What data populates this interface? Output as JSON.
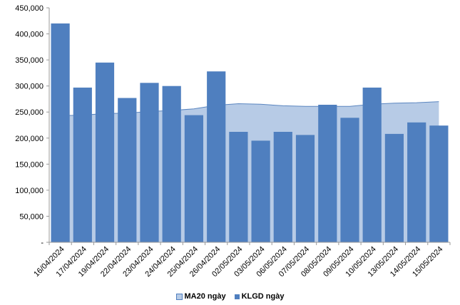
{
  "chart_data": {
    "type": "bar+area",
    "categories": [
      "16/04/2024",
      "17/04/2024",
      "19/04/2024",
      "22/04/2024",
      "23/04/2024",
      "24/04/2024",
      "25/04/2024",
      "26/04/2024",
      "02/05/2024",
      "03/05/2024",
      "06/05/2024",
      "07/05/2024",
      "08/05/2024",
      "09/05/2024",
      "10/05/2024",
      "13/05/2024",
      "14/05/2024",
      "15/05/2024"
    ],
    "series": [
      {
        "name": "MA20 ngày",
        "type": "area",
        "color": "#b7cbe6",
        "values": [
          243000,
          244000,
          247000,
          248000,
          251000,
          253000,
          256000,
          263000,
          266000,
          265000,
          262000,
          261000,
          261000,
          261000,
          265000,
          267000,
          268000,
          270000
        ]
      },
      {
        "name": "KLGD ngày",
        "type": "bar",
        "color": "#4f7fbf",
        "values": [
          420000,
          297000,
          345000,
          277000,
          306000,
          300000,
          244000,
          328000,
          212000,
          195000,
          212000,
          206000,
          264000,
          239000,
          297000,
          208000,
          230000,
          224000
        ]
      }
    ],
    "ylim": [
      0,
      450000
    ],
    "yticks": [
      "-",
      "50,000",
      "100,000",
      "150,000",
      "200,000",
      "250,000",
      "300,000",
      "350,000",
      "400,000",
      "450,000"
    ],
    "grid": false,
    "legend_position": "bottom",
    "title": "",
    "xlabel": "",
    "ylabel": ""
  }
}
